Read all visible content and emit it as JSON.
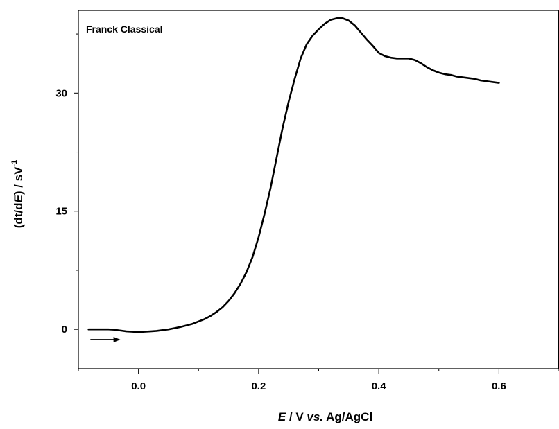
{
  "chart_data": {
    "type": "line",
    "title": "Franck Classical",
    "xlabel": {
      "italic": "E",
      "mid": " / V ",
      "italic2": "vs.",
      "tail": " Ag/AgCl"
    },
    "ylabel": {
      "open": "(dt/d",
      "italic": "E",
      "close": ") / sV",
      "sup": "-1"
    },
    "xlim": [
      -0.1,
      0.7
    ],
    "ylim": [
      -5,
      40.5
    ],
    "xticks": [
      0.0,
      0.2,
      0.4,
      0.6
    ],
    "xtick_labels": [
      "0.0",
      "0.2",
      "0.4",
      "0.6"
    ],
    "yticks": [
      0,
      15,
      30
    ],
    "ytick_labels": [
      "0",
      "15",
      "30"
    ],
    "grid": false,
    "legend": "none",
    "series": [
      {
        "color": "#000000",
        "x": [
          -0.083,
          -0.07,
          -0.05,
          -0.04,
          -0.03,
          -0.02,
          -0.01,
          0.0,
          0.01,
          0.02,
          0.03,
          0.04,
          0.05,
          0.06,
          0.07,
          0.08,
          0.09,
          0.1,
          0.11,
          0.12,
          0.13,
          0.14,
          0.15,
          0.16,
          0.17,
          0.18,
          0.19,
          0.2,
          0.21,
          0.22,
          0.23,
          0.24,
          0.25,
          0.26,
          0.27,
          0.28,
          0.29,
          0.3,
          0.31,
          0.32,
          0.33,
          0.34,
          0.35,
          0.36,
          0.37,
          0.38,
          0.39,
          0.4,
          0.41,
          0.42,
          0.43,
          0.44,
          0.45,
          0.46,
          0.47,
          0.48,
          0.49,
          0.5,
          0.51,
          0.52,
          0.53,
          0.54,
          0.55,
          0.56,
          0.57,
          0.58,
          0.59,
          0.6
        ],
        "y": [
          0.0,
          0.0,
          0.0,
          -0.05,
          -0.15,
          -0.25,
          -0.3,
          -0.35,
          -0.3,
          -0.25,
          -0.2,
          -0.1,
          0.0,
          0.15,
          0.3,
          0.5,
          0.7,
          1.0,
          1.3,
          1.7,
          2.2,
          2.8,
          3.6,
          4.6,
          5.8,
          7.3,
          9.2,
          11.7,
          14.7,
          18.0,
          21.8,
          25.6,
          28.9,
          31.8,
          34.4,
          36.2,
          37.3,
          38.1,
          38.8,
          39.3,
          39.5,
          39.5,
          39.2,
          38.6,
          37.7,
          36.8,
          36.0,
          35.1,
          34.7,
          34.5,
          34.4,
          34.4,
          34.4,
          34.2,
          33.8,
          33.3,
          32.9,
          32.6,
          32.4,
          32.3,
          32.1,
          32.0,
          31.9,
          31.8,
          31.6,
          31.5,
          31.4,
          31.3
        ]
      }
    ],
    "annotation": {
      "arrow_from": [
        -0.08,
        -1.3
      ],
      "arrow_to": [
        -0.03,
        -1.3
      ],
      "direction": "right"
    }
  }
}
